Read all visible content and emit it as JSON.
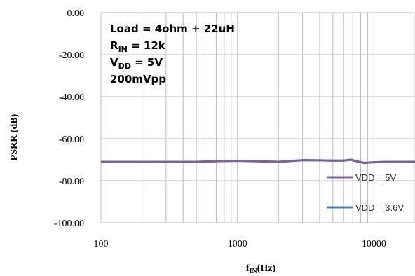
{
  "chart_data": {
    "type": "line",
    "xlabel": {
      "main": "f",
      "sub": "IN",
      "suffix": "(Hz)"
    },
    "ylabel": "PSRR (dB)",
    "xscale": "log",
    "xlim": [
      100,
      20000
    ],
    "ylim": [
      -100,
      0
    ],
    "x_ticks": [
      {
        "value": 100,
        "label": "100"
      },
      {
        "value": 1000,
        "label": "1000"
      },
      {
        "value": 10000,
        "label": "10000"
      }
    ],
    "y_ticks": [
      {
        "value": 0,
        "label": "0.00"
      },
      {
        "value": -20,
        "label": "-20.00"
      },
      {
        "value": -40,
        "label": "-40.00"
      },
      {
        "value": -60,
        "label": "-60.00"
      },
      {
        "value": -80,
        "label": "-80.00"
      },
      {
        "value": -100,
        "label": "-100.00"
      }
    ],
    "grid": true,
    "legend_position": "right",
    "annotations": [
      {
        "id": "load",
        "parts": [
          {
            "t": "Load = 4ohm + 22uH"
          }
        ]
      },
      {
        "id": "rin",
        "parts": [
          {
            "t": "R"
          },
          {
            "t": "IN",
            "sub": true
          },
          {
            "t": " = 12k"
          }
        ]
      },
      {
        "id": "vdd",
        "parts": [
          {
            "t": "V"
          },
          {
            "t": "DD",
            "sub": true
          },
          {
            "t": " = 5V"
          }
        ]
      },
      {
        "id": "amp",
        "parts": [
          {
            "t": "200mVpp"
          }
        ]
      }
    ],
    "series": [
      {
        "name": "VDD = 3.6V",
        "color": "#4a7ebb",
        "x": [
          100,
          200,
          500,
          700,
          1000,
          1500,
          2000,
          2500,
          3000,
          4000,
          5000,
          6000,
          6800,
          7500,
          8500,
          10000,
          13000,
          20000
        ],
        "y": [
          -71,
          -71,
          -71,
          -70.7,
          -70.5,
          -70.8,
          -71,
          -70.6,
          -70.2,
          -70.3,
          -70.4,
          -70.4,
          -70,
          -70.8,
          -71.5,
          -71.2,
          -71,
          -71
        ]
      },
      {
        "name": "VDD = 5V",
        "color": "#7f5f9f",
        "x": [
          100,
          200,
          500,
          700,
          1000,
          1500,
          2000,
          2500,
          3000,
          4000,
          5000,
          6000,
          6800,
          7500,
          8500,
          10000,
          13000,
          20000
        ],
        "y": [
          -71,
          -71,
          -71,
          -70.7,
          -70.5,
          -70.8,
          -71,
          -70.6,
          -70.2,
          -70.3,
          -70.4,
          -70.4,
          -70,
          -70.8,
          -71.5,
          -71.2,
          -71,
          -71
        ]
      }
    ],
    "legend_order": [
      "VDD = 5V",
      "VDD = 3.6V"
    ]
  }
}
